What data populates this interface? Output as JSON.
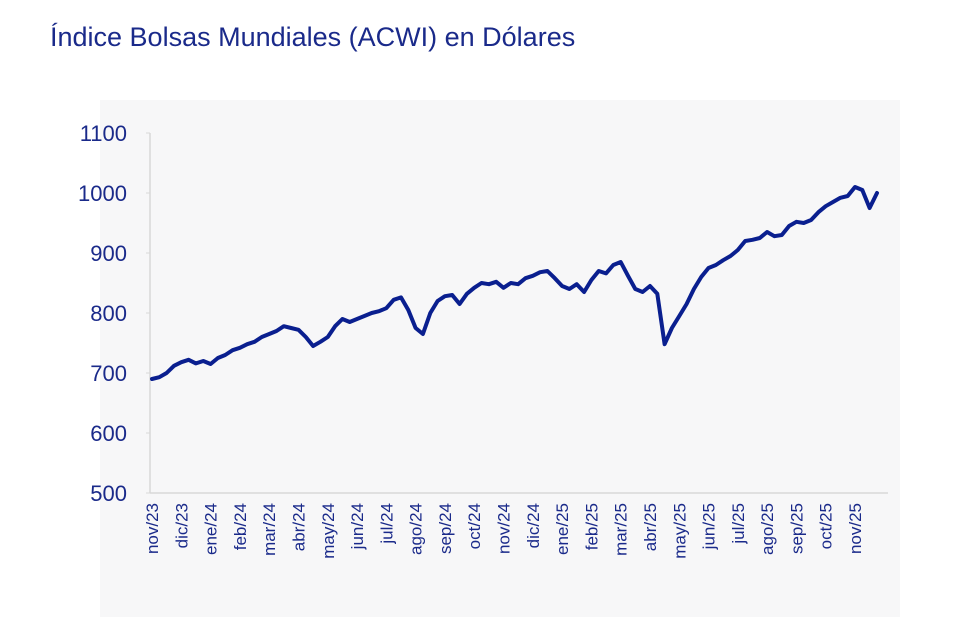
{
  "chart_data": {
    "type": "line",
    "title": "Índice Bolsas Mundiales (ACWI) en Dólares",
    "categories": [
      "nov/23",
      null,
      null,
      null,
      "dic/23",
      null,
      null,
      null,
      "ene/24",
      null,
      null,
      null,
      "feb/24",
      null,
      null,
      null,
      "mar/24",
      null,
      null,
      null,
      "abr/24",
      null,
      null,
      null,
      "may/24",
      null,
      null,
      null,
      "jun/24",
      null,
      null,
      null,
      "jul/24",
      null,
      null,
      null,
      "ago/24",
      null,
      null,
      null,
      "sep/24",
      null,
      null,
      null,
      "oct/24",
      null,
      null,
      null,
      "nov/24",
      null,
      null,
      null,
      "dic/24",
      null,
      null,
      null,
      "ene/25",
      null,
      null,
      null,
      "feb/25",
      null,
      null,
      null,
      "mar/25",
      null,
      null,
      null,
      "abr/25",
      null,
      null,
      null,
      "may/25",
      null,
      null,
      null,
      "jun/25",
      null,
      null,
      null,
      "jul/25",
      null,
      null,
      null,
      "ago/25",
      null,
      null,
      null,
      "sep/25",
      null,
      null,
      null,
      "oct/25",
      null,
      null,
      null,
      "nov/25",
      null,
      null,
      null
    ],
    "values": [
      690,
      693,
      700,
      712,
      718,
      722,
      716,
      720,
      715,
      725,
      730,
      738,
      742,
      748,
      752,
      760,
      765,
      770,
      778,
      775,
      772,
      760,
      745,
      752,
      760,
      778,
      790,
      785,
      790,
      795,
      800,
      803,
      808,
      822,
      826,
      805,
      775,
      765,
      800,
      820,
      828,
      830,
      815,
      832,
      842,
      850,
      848,
      852,
      842,
      850,
      848,
      858,
      862,
      868,
      870,
      858,
      845,
      840,
      848,
      835,
      855,
      870,
      866,
      880,
      885,
      862,
      840,
      835,
      845,
      832,
      748,
      775,
      795,
      815,
      840,
      860,
      875,
      880,
      888,
      895,
      905,
      920,
      922,
      925,
      935,
      928,
      930,
      945,
      952,
      950,
      955,
      968,
      978,
      985,
      992,
      995,
      1010,
      1005,
      975,
      1000
    ],
    "color": "#0a1f8f",
    "ylim": [
      500,
      1100
    ],
    "yticks": [
      500,
      600,
      700,
      800,
      900,
      1000,
      1100
    ]
  }
}
